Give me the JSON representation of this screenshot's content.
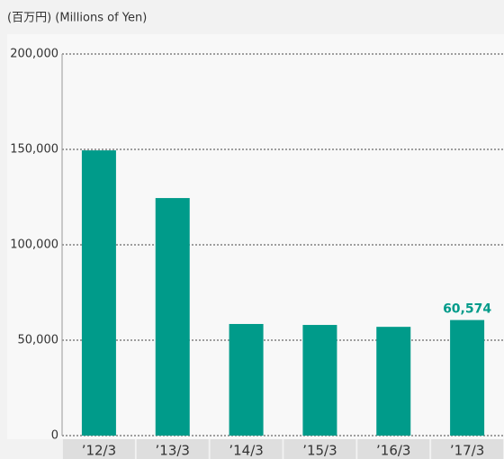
{
  "chart_data": {
    "type": "bar",
    "title": "(百万円) (Millions of Yen)",
    "categories": [
      "’12/3",
      "’13/3",
      "’14/3",
      "’15/3",
      "’16/3",
      "’17/3"
    ],
    "values": [
      149500,
      124500,
      58500,
      58000,
      57000,
      60574
    ],
    "value_labels": [
      null,
      null,
      null,
      null,
      null,
      "60,574"
    ],
    "color": "#009b8a",
    "ylim": [
      0,
      200000
    ],
    "yticks": [
      {
        "value": 0,
        "label": "0"
      },
      {
        "value": 50000,
        "label": "50,000"
      },
      {
        "value": 100000,
        "label": "100,000"
      },
      {
        "value": 150000,
        "label": "150,000"
      },
      {
        "value": 200000,
        "label": "200,000"
      }
    ],
    "grid": true
  }
}
